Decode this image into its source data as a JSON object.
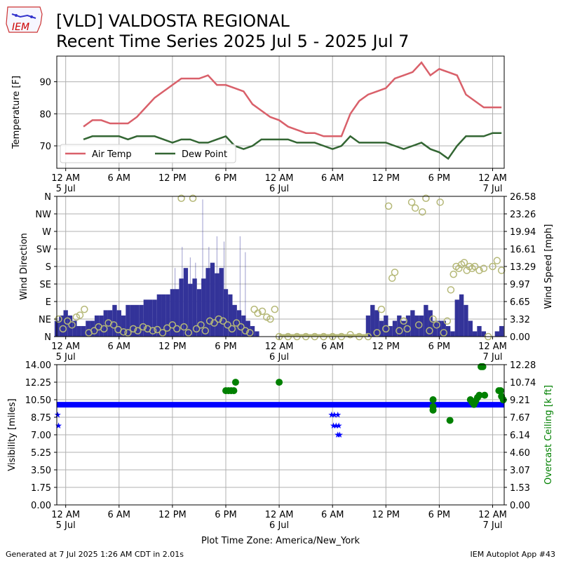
{
  "header": {
    "logo_text": "IEM",
    "title_line1": "[VLD] VALDOSTA REGIONAL",
    "title_line2": "Recent Time Series 2025 Jul 5 - 2025 Jul 7"
  },
  "footer": {
    "generated": "Generated at 7 Jul 2025 1:26 AM CDT in 2.01s",
    "app": "IEM Autoplot App #43",
    "timezone_label": "Plot Time Zone: America/New_York"
  },
  "colors": {
    "air_temp": "#d9606a",
    "dew_point": "#336633",
    "wind_bar": "#333399",
    "wind_dir": "#b5b877",
    "visibility": "#0000ff",
    "ceiling": "#008000",
    "grid": "#b0b0b0"
  },
  "time_axis": {
    "start_hour": -1.0,
    "end_hour": 49.3,
    "ticks": [
      {
        "hour": 0,
        "label": "12 AM",
        "sub": "5 Jul"
      },
      {
        "hour": 6,
        "label": "6 AM",
        "sub": ""
      },
      {
        "hour": 12,
        "label": "12 PM",
        "sub": ""
      },
      {
        "hour": 18,
        "label": "6 PM",
        "sub": ""
      },
      {
        "hour": 24,
        "label": "12 AM",
        "sub": "6 Jul"
      },
      {
        "hour": 30,
        "label": "6 AM",
        "sub": ""
      },
      {
        "hour": 36,
        "label": "12 PM",
        "sub": ""
      },
      {
        "hour": 42,
        "label": "6 PM",
        "sub": ""
      },
      {
        "hour": 48,
        "label": "12 AM",
        "sub": "7 Jul"
      }
    ]
  },
  "chart_data": [
    {
      "type": "line",
      "ylabel": "Temperature [F]",
      "ylim": [
        63,
        98
      ],
      "yticks": [
        70,
        80,
        90
      ],
      "grid": true,
      "legend_placement": "lower-left",
      "series": [
        {
          "name": "Air Temp",
          "x": [
            2,
            3,
            4,
            5,
            6,
            7,
            8,
            9,
            10,
            11,
            12,
            13,
            14,
            15,
            16,
            17,
            18,
            19,
            20,
            21,
            22,
            23,
            24,
            25,
            26,
            27,
            28,
            29,
            30,
            31,
            32,
            33,
            34,
            35,
            36,
            37,
            38,
            39,
            40,
            41,
            42,
            43,
            44,
            45,
            46,
            47,
            48,
            49
          ],
          "y": [
            76,
            78,
            78,
            77,
            77,
            77,
            79,
            82,
            85,
            87,
            89,
            91,
            91,
            91,
            92,
            89,
            89,
            88,
            87,
            83,
            81,
            79,
            78,
            76,
            75,
            74,
            74,
            73,
            73,
            73,
            80,
            84,
            86,
            87,
            88,
            91,
            92,
            93,
            96,
            92,
            94,
            93,
            92,
            86,
            84,
            82,
            82,
            82
          ]
        },
        {
          "name": "Dew Point",
          "x": [
            2,
            3,
            4,
            5,
            6,
            7,
            8,
            9,
            10,
            11,
            12,
            13,
            14,
            15,
            16,
            17,
            18,
            19,
            20,
            21,
            22,
            23,
            24,
            25,
            26,
            27,
            28,
            29,
            30,
            31,
            32,
            33,
            34,
            35,
            36,
            37,
            38,
            39,
            40,
            41,
            42,
            43,
            44,
            45,
            46,
            47,
            48,
            49
          ],
          "y": [
            72,
            73,
            73,
            73,
            73,
            72,
            73,
            73,
            73,
            72,
            71,
            72,
            72,
            71,
            71,
            72,
            73,
            70,
            69,
            70,
            72,
            72,
            72,
            72,
            71,
            71,
            71,
            70,
            69,
            70,
            73,
            71,
            71,
            71,
            71,
            70,
            69,
            70,
            71,
            69,
            68,
            66,
            70,
            73,
            73,
            73,
            74,
            74
          ]
        }
      ]
    },
    {
      "type": "bar",
      "ylabel": "Wind Direction",
      "y2label": "Wind Speed [mph]",
      "dir_ticks": [
        "N",
        "NE",
        "E",
        "SE",
        "S",
        "SW",
        "W",
        "NW",
        "N"
      ],
      "speed_ticks": [
        "0.00",
        "3.32",
        "6.65",
        "9.97",
        "13.29",
        "16.61",
        "19.94",
        "23.26",
        "26.58"
      ],
      "speed_max": 26.58,
      "grid": true,
      "speed_series": {
        "x": [
          -1,
          -0.5,
          0,
          0.5,
          1,
          1.5,
          2,
          2.5,
          3,
          3.5,
          4,
          4.5,
          5,
          5.5,
          6,
          6.5,
          7,
          7.5,
          8,
          8.5,
          9,
          9.5,
          10,
          10.5,
          11,
          11.5,
          12,
          12.5,
          13,
          13.5,
          14,
          14.5,
          15,
          15.5,
          16,
          16.5,
          17,
          17.5,
          18,
          18.5,
          19,
          19.5,
          20,
          20.5,
          21,
          21.5,
          22,
          22.5,
          23,
          23.5,
          24,
          24.5,
          25,
          25.5,
          26,
          26.5,
          27,
          27.5,
          28,
          28.5,
          29,
          29.5,
          30,
          30.5,
          31,
          31.5,
          32,
          32.5,
          33,
          33.5,
          34,
          34.5,
          35,
          35.5,
          36,
          36.5,
          37,
          37.5,
          38,
          38.5,
          39,
          39.5,
          40,
          40.5,
          41,
          41.5,
          42,
          42.5,
          43,
          43.5,
          44,
          44.5,
          45,
          45.5,
          46,
          46.5,
          47,
          47.5,
          48,
          48.5,
          49
        ],
        "y": [
          3,
          4,
          5,
          4,
          3,
          2,
          2,
          3,
          3,
          4,
          4,
          5,
          5,
          6,
          5,
          4,
          6,
          6,
          6,
          6,
          7,
          7,
          7,
          8,
          8,
          8,
          9,
          9,
          11,
          13,
          10,
          11,
          9,
          11,
          13,
          14,
          12,
          13,
          9,
          8,
          6,
          5,
          4,
          3,
          2,
          1,
          0,
          0,
          0,
          0,
          0,
          0,
          0,
          0,
          0,
          0,
          0,
          0,
          0,
          0,
          0,
          0,
          0,
          0,
          0,
          0,
          0,
          0,
          0,
          0,
          0,
          0,
          0,
          0,
          0,
          0,
          0,
          0,
          0,
          0,
          0,
          0,
          0,
          0,
          0,
          0,
          0,
          0,
          0,
          0,
          0,
          0,
          0,
          0,
          0,
          0,
          0,
          0,
          0,
          0,
          0
        ],
        "gust_x": [
          12.3,
          13.1,
          14.0,
          14.6,
          15.4,
          16.1,
          17.0,
          17.8,
          19.6,
          20.2
        ],
        "gust_y": [
          13,
          17,
          15,
          14,
          26,
          17,
          19,
          18,
          19,
          16
        ]
      },
      "speed_series_day2": {
        "x": [
          34,
          34.5,
          35,
          35.5,
          36,
          36.5,
          37,
          37.5,
          38,
          38.5,
          39,
          39.5,
          40,
          40.5,
          41,
          41.5,
          42,
          42.5,
          43,
          43.5,
          44,
          44.5,
          45,
          45.5,
          46,
          46.5,
          47,
          47.5,
          48,
          48.5,
          49
        ],
        "y": [
          4,
          6,
          5,
          3,
          4,
          2,
          3,
          4,
          3,
          4,
          5,
          4,
          4,
          6,
          5,
          3,
          3,
          3,
          2,
          1,
          7,
          8,
          6,
          3,
          1,
          2,
          1,
          0,
          0,
          1,
          2
        ]
      },
      "direction_points": [
        {
          "x": -0.8,
          "d": 45
        },
        {
          "x": -0.3,
          "d": 20
        },
        {
          "x": 0.2,
          "d": 40
        },
        {
          "x": 0.7,
          "d": 30
        },
        {
          "x": 1.2,
          "d": 50
        },
        {
          "x": 1.6,
          "d": 55
        },
        {
          "x": 2.1,
          "d": 70
        },
        {
          "x": 2.6,
          "d": 10
        },
        {
          "x": 3.2,
          "d": 15
        },
        {
          "x": 3.7,
          "d": 25
        },
        {
          "x": 4.3,
          "d": 20
        },
        {
          "x": 4.8,
          "d": 35
        },
        {
          "x": 5.4,
          "d": 30
        },
        {
          "x": 5.9,
          "d": 18
        },
        {
          "x": 6.5,
          "d": 12
        },
        {
          "x": 7.0,
          "d": 10
        },
        {
          "x": 7.6,
          "d": 20
        },
        {
          "x": 8.1,
          "d": 15
        },
        {
          "x": 8.7,
          "d": 25
        },
        {
          "x": 9.2,
          "d": 20
        },
        {
          "x": 9.8,
          "d": 15
        },
        {
          "x": 10.3,
          "d": 18
        },
        {
          "x": 10.9,
          "d": 10
        },
        {
          "x": 11.4,
          "d": 22
        },
        {
          "x": 12.0,
          "d": 30
        },
        {
          "x": 12.5,
          "d": 20
        },
        {
          "x": 13.0,
          "d": 355
        },
        {
          "x": 13.3,
          "d": 25
        },
        {
          "x": 13.8,
          "d": 10
        },
        {
          "x": 14.3,
          "d": 355
        },
        {
          "x": 14.7,
          "d": 20
        },
        {
          "x": 15.2,
          "d": 30
        },
        {
          "x": 15.7,
          "d": 15
        },
        {
          "x": 16.2,
          "d": 40
        },
        {
          "x": 16.7,
          "d": 35
        },
        {
          "x": 17.2,
          "d": 45
        },
        {
          "x": 17.7,
          "d": 40
        },
        {
          "x": 18.2,
          "d": 30
        },
        {
          "x": 18.7,
          "d": 20
        },
        {
          "x": 19.2,
          "d": 35
        },
        {
          "x": 19.7,
          "d": 25
        },
        {
          "x": 20.2,
          "d": 15
        },
        {
          "x": 20.7,
          "d": 10
        },
        {
          "x": 21.2,
          "d": 70
        },
        {
          "x": 21.6,
          "d": 60
        },
        {
          "x": 22.1,
          "d": 65
        },
        {
          "x": 22.6,
          "d": 50
        },
        {
          "x": 23.0,
          "d": 45
        },
        {
          "x": 23.5,
          "d": 70
        },
        {
          "x": 24.0,
          "d": 0
        },
        {
          "x": 25,
          "d": 0
        },
        {
          "x": 26,
          "d": 0
        },
        {
          "x": 27,
          "d": 0
        },
        {
          "x": 28,
          "d": 0
        },
        {
          "x": 29,
          "d": 0
        },
        {
          "x": 30,
          "d": 0
        },
        {
          "x": 31,
          "d": 0
        },
        {
          "x": 32,
          "d": 5
        },
        {
          "x": 33,
          "d": 0
        },
        {
          "x": 34,
          "d": 0
        },
        {
          "x": 35,
          "d": 10
        },
        {
          "x": 35.5,
          "d": 70
        },
        {
          "x": 36.0,
          "d": 20
        },
        {
          "x": 36.3,
          "d": 335
        },
        {
          "x": 36.7,
          "d": 150
        },
        {
          "x": 37.0,
          "d": 165
        },
        {
          "x": 37.5,
          "d": 15
        },
        {
          "x": 38.0,
          "d": 40
        },
        {
          "x": 38.4,
          "d": 20
        },
        {
          "x": 38.9,
          "d": 345
        },
        {
          "x": 39.3,
          "d": 330
        },
        {
          "x": 39.7,
          "d": 30
        },
        {
          "x": 40.1,
          "d": 320
        },
        {
          "x": 40.5,
          "d": 355
        },
        {
          "x": 40.9,
          "d": 15
        },
        {
          "x": 41.3,
          "d": 45
        },
        {
          "x": 41.7,
          "d": 30
        },
        {
          "x": 42.1,
          "d": 345
        },
        {
          "x": 42.5,
          "d": 10
        },
        {
          "x": 42.9,
          "d": 40
        },
        {
          "x": 43.3,
          "d": 120
        },
        {
          "x": 43.6,
          "d": 160
        },
        {
          "x": 43.9,
          "d": 180
        },
        {
          "x": 44.2,
          "d": 175
        },
        {
          "x": 44.5,
          "d": 185
        },
        {
          "x": 44.8,
          "d": 190
        },
        {
          "x": 45.1,
          "d": 170
        },
        {
          "x": 45.4,
          "d": 180
        },
        {
          "x": 45.7,
          "d": 175
        },
        {
          "x": 46.0,
          "d": 180
        },
        {
          "x": 46.5,
          "d": 170
        },
        {
          "x": 47.0,
          "d": 175
        },
        {
          "x": 47.5,
          "d": 0
        },
        {
          "x": 48.0,
          "d": 180
        },
        {
          "x": 48.5,
          "d": 195
        },
        {
          "x": 49.0,
          "d": 170
        }
      ]
    },
    {
      "type": "scatter",
      "ylabel": "Visibility [miles]",
      "y2label": "Overcast Ceiling [k ft]",
      "vis_ticks": [
        "0.00",
        "1.75",
        "3.50",
        "5.25",
        "7.00",
        "8.75",
        "10.50",
        "12.25",
        "14.00"
      ],
      "ceil_ticks": [
        "0.00",
        "1.53",
        "3.07",
        "4.60",
        "6.14",
        "7.67",
        "9.21",
        "10.74",
        "12.28"
      ],
      "vis_max": 14.0,
      "ceil_max": 12.28,
      "grid": true,
      "visibility": {
        "steady_value": 10.0,
        "steady_range": [
          -1,
          49.3
        ],
        "dips": [
          {
            "x": -0.9,
            "y": 9.0
          },
          {
            "x": -0.8,
            "y": 7.9
          },
          {
            "x": 29.9,
            "y": 9.0
          },
          {
            "x": 30.1,
            "y": 7.9
          },
          {
            "x": 30.4,
            "y": 7.9
          },
          {
            "x": 30.7,
            "y": 7.9
          },
          {
            "x": 30.6,
            "y": 7.0
          },
          {
            "x": 30.8,
            "y": 7.0
          },
          {
            "x": 30.2,
            "y": 9.0
          },
          {
            "x": 30.6,
            "y": 9.0
          }
        ]
      },
      "ceiling": {
        "x": [
          18.0,
          18.3,
          18.6,
          18.9,
          19.1,
          24.0,
          41.3,
          41.3,
          41.3,
          43.2,
          45.5,
          45.7,
          45.9,
          46.1,
          46.3,
          46.5,
          46.7,
          46.9,
          47.1,
          48.7,
          48.9,
          49.0,
          49.2
        ],
        "y": [
          10.0,
          10.0,
          10.0,
          10.0,
          10.74,
          10.74,
          9.21,
          8.6,
          8.3,
          7.4,
          9.21,
          9.0,
          8.8,
          9.1,
          9.4,
          9.6,
          12.1,
          12.1,
          9.6,
          10.0,
          10.0,
          9.5,
          9.2
        ]
      }
    }
  ]
}
